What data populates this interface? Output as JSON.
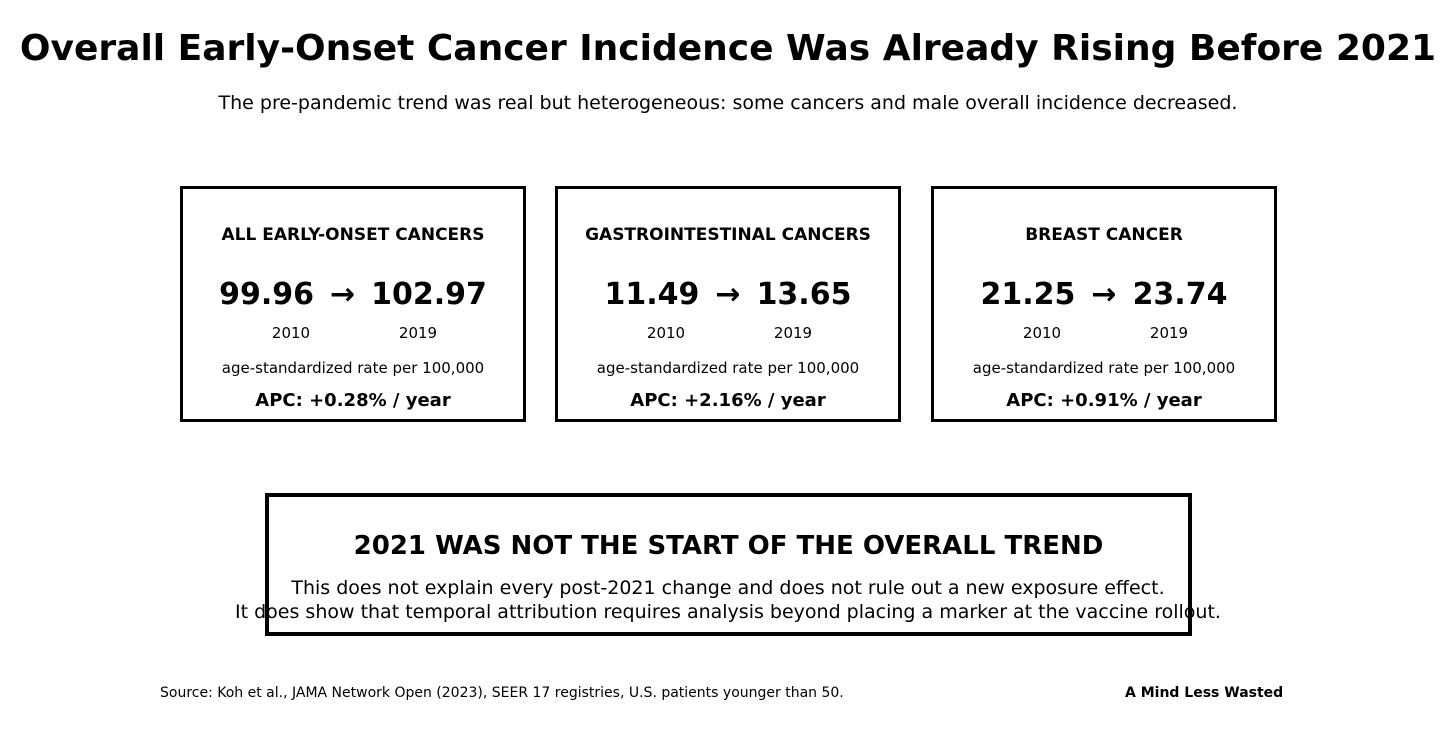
{
  "header": {
    "title": "Overall Early-Onset Cancer Incidence Was Already Rising Before 2021",
    "subtitle": "The pre-pandemic trend was real but heterogeneous: some cancers and male overall incidence decreased."
  },
  "cards": [
    {
      "heading": "ALL EARLY-ONSET CANCERS",
      "value_start": "99.96",
      "arrow": "→",
      "value_end": "102.97",
      "year_start": "2010",
      "year_end": "2019",
      "unit": "age-standardized rate per 100,000",
      "apc": "APC: +0.28% / year"
    },
    {
      "heading": "GASTROINTESTINAL CANCERS",
      "value_start": "11.49",
      "arrow": "→",
      "value_end": "13.65",
      "year_start": "2010",
      "year_end": "2019",
      "unit": "age-standardized rate per 100,000",
      "apc": "APC: +2.16% / year"
    },
    {
      "heading": "BREAST CANCER",
      "value_start": "21.25",
      "arrow": "→",
      "value_end": "23.74",
      "year_start": "2010",
      "year_end": "2019",
      "unit": "age-standardized rate per 100,000",
      "apc": "APC: +0.91% / year"
    }
  ],
  "callout": {
    "heading": "2021 WAS NOT THE START OF THE OVERALL TREND",
    "line1": "This does not explain every post-2021 change and does not rule out a new exposure effect.",
    "line2": "It does show that temporal attribution requires analysis beyond placing a marker at the vaccine rollout."
  },
  "footer": {
    "source": "Source: Koh et al., JAMA Network Open (2023), SEER 17 registries, U.S. patients younger than 50.",
    "brand": "A Mind Less Wasted"
  },
  "colors": {
    "text": "#000000",
    "border": "#000000",
    "background": "#ffffff"
  }
}
